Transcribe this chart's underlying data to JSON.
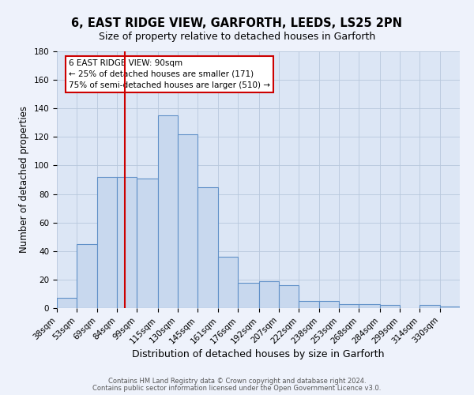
{
  "title": "6, EAST RIDGE VIEW, GARFORTH, LEEDS, LS25 2PN",
  "subtitle": "Size of property relative to detached houses in Garforth",
  "xlabel": "Distribution of detached houses by size in Garforth",
  "ylabel": "Number of detached properties",
  "bins": [
    38,
    53,
    69,
    84,
    99,
    115,
    130,
    145,
    161,
    176,
    192,
    207,
    222,
    238,
    253,
    268,
    284,
    299,
    314,
    330,
    345
  ],
  "counts": [
    7,
    45,
    92,
    92,
    91,
    135,
    122,
    85,
    36,
    18,
    19,
    16,
    5,
    5,
    3,
    3,
    2,
    0,
    2,
    1
  ],
  "bar_color": "#c8d8ee",
  "bar_edge_color": "#6090c8",
  "vline_x": 90,
  "vline_color": "#cc0000",
  "ylim": [
    0,
    180
  ],
  "yticks": [
    0,
    20,
    40,
    60,
    80,
    100,
    120,
    140,
    160,
    180
  ],
  "annotation_line1": "6 EAST RIDGE VIEW: 90sqm",
  "annotation_line2": "← 25% of detached houses are smaller (171)",
  "annotation_line3": "75% of semi-detached houses are larger (510) →",
  "footer1": "Contains HM Land Registry data © Crown copyright and database right 2024.",
  "footer2": "Contains public sector information licensed under the Open Government Licence v3.0.",
  "bg_color": "#eef2fb",
  "plot_bg_color": "#dce6f5",
  "grid_color": "#b8c8dc",
  "title_fontsize": 10.5,
  "subtitle_fontsize": 9,
  "tick_label_size": 7.5,
  "ylabel_fontsize": 8.5,
  "xlabel_fontsize": 9
}
